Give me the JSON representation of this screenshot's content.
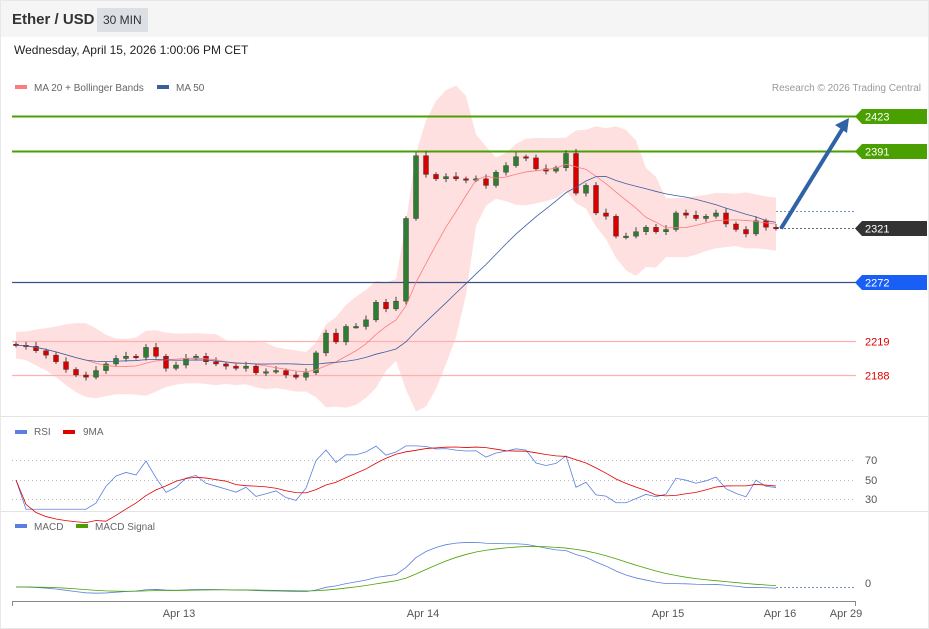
{
  "header": {
    "title": "Ether / USD",
    "timeframe": "30 MIN",
    "datetime": "Wednesday, April 15, 2026 1:00:06 PM CET"
  },
  "copyright": "Research © 2026 Trading Central",
  "colors": {
    "resistance": "#4aa000",
    "pivot": "#333333",
    "support_blue": "#1a5ff5",
    "support_red": "#e00000",
    "candle_up": "#2e7d32",
    "candle_down": "#d50000",
    "ma20": "#ff7b7b",
    "ma50": "#3a5fa0",
    "arrow": "#2f63a6"
  },
  "chart_data": [
    {
      "type": "candlestick",
      "title": "Ether / USD",
      "legend": [
        {
          "name": "MA 20 + Bollinger Bands",
          "color": "#ff7b7b"
        },
        {
          "name": "MA 50",
          "color": "#3a5fa0"
        }
      ],
      "ylim": [
        2160,
        2430
      ],
      "closes": [
        2215,
        2214,
        2210,
        2206,
        2200,
        2193,
        2188,
        2186,
        2192,
        2198,
        2203,
        2205,
        2204,
        2213,
        2205,
        2194,
        2197,
        2203,
        2205,
        2200,
        2198,
        2196,
        2194,
        2196,
        2190,
        2191,
        2192,
        2188,
        2186,
        2190,
        2208,
        2226,
        2218,
        2232,
        2232,
        2238,
        2254,
        2248,
        2255,
        2330,
        2387,
        2370,
        2366,
        2368,
        2366,
        2365,
        2366,
        2360,
        2372,
        2378,
        2386,
        2385,
        2375,
        2373,
        2376,
        2389,
        2353,
        2360,
        2335,
        2332,
        2314,
        2314,
        2318,
        2322,
        2318,
        2320,
        2335,
        2333,
        2330,
        2332,
        2335,
        2325,
        2320,
        2316,
        2328,
        2322,
        2321
      ],
      "levels": [
        {
          "value": 2423,
          "label": "2423",
          "kind": "resistance"
        },
        {
          "value": 2391,
          "label": "2391",
          "kind": "resistance"
        },
        {
          "value": 2321,
          "label": "2321",
          "kind": "pivot"
        },
        {
          "value": 2272,
          "label": "2272",
          "kind": "support_blue"
        },
        {
          "value": 2219,
          "label": "2219",
          "kind": "support_red"
        },
        {
          "value": 2188,
          "label": "2188",
          "kind": "support_red"
        }
      ],
      "target_arrow": {
        "from": 2321,
        "to": 2423
      },
      "x_ticks": [
        "Apr 13",
        "Apr 14",
        "Apr 15",
        "Apr 16",
        "Apr 29"
      ]
    },
    {
      "type": "line",
      "legend": [
        {
          "name": "RSI",
          "color": "#5b7fe0"
        },
        {
          "name": "9MA",
          "color": "#e00000"
        }
      ],
      "y_ticks": [
        "70",
        "50",
        "30"
      ]
    },
    {
      "type": "line",
      "legend": [
        {
          "name": "MACD",
          "color": "#5b7fe0"
        },
        {
          "name": "MACD Signal",
          "color": "#4aa000"
        }
      ],
      "y_ticks": [
        "0"
      ]
    }
  ]
}
